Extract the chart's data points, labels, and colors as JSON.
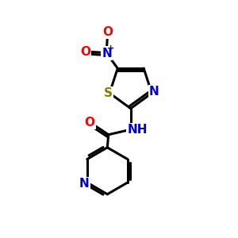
{
  "background_color": "#ffffff",
  "line_color": "#000000",
  "bond_width": 2.2,
  "atom_colors": {
    "N": "#0000cc",
    "O": "#ff0000",
    "S": "#808000",
    "C": "#000000"
  },
  "font_size": 11,
  "figsize": [
    3.0,
    3.0
  ],
  "dpi": 100
}
